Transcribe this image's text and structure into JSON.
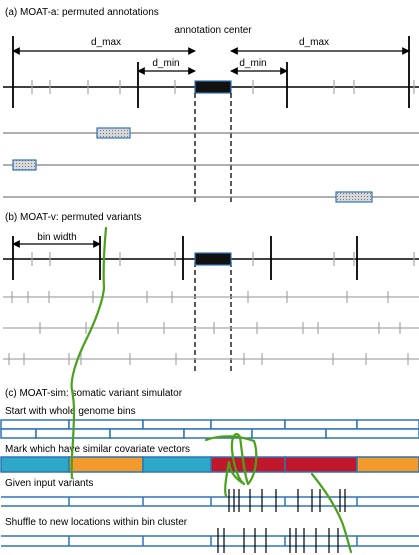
{
  "panel_a": {
    "title": "(a) MOAT-a: permuted annotations",
    "center_label": "annotation center",
    "dmax_left": "d_max",
    "dmax_right": "d_max",
    "dmin_left": "d_min",
    "dmin_right": "d_min"
  },
  "panel_b": {
    "title": "(b) MOAT-v: permuted variants",
    "bin_width": "bin width"
  },
  "panel_c": {
    "title": "(c) MOAT-sim: somatic variant simulator",
    "step1": "Start with whole genome bins",
    "step2": "Mark which have similar covariate vectors",
    "step3": "Given input variants",
    "step4": "Shuffle to new locations within bin cluster"
  },
  "colors": {
    "blue_bin": "#2e75b6",
    "cyan": "#2ea8c8",
    "orange": "#f39a2d",
    "red": "#c0182a",
    "green_annotation": "#4aa11b"
  }
}
